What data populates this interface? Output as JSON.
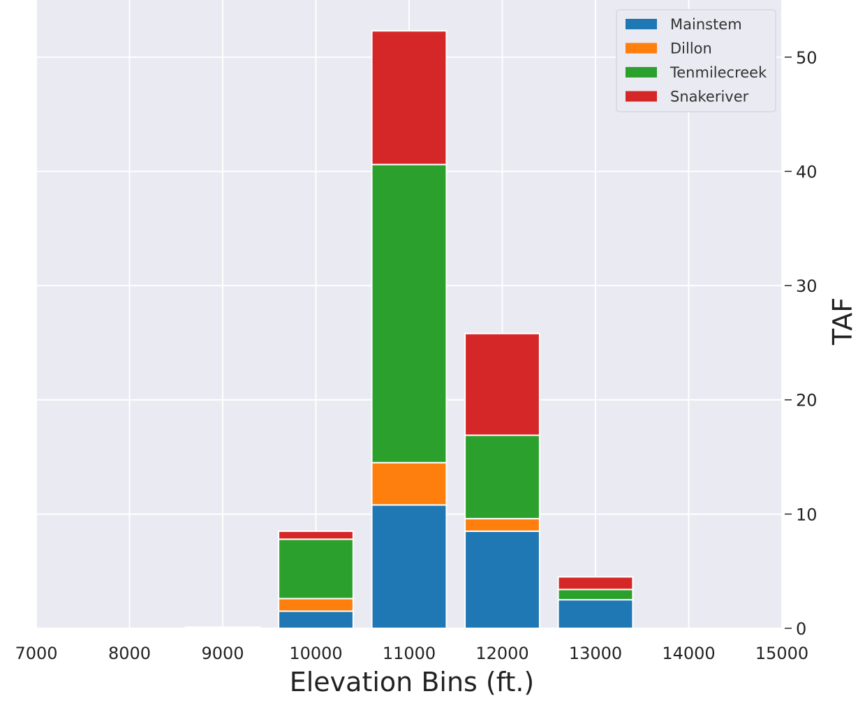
{
  "chart_data": {
    "type": "bar",
    "stacked": true,
    "title": "",
    "xlabel": "Elevation Bins (ft.)",
    "ylabel": "TAF",
    "y_axis_position": "right",
    "categories": [
      9000,
      10000,
      11000,
      12000,
      13000
    ],
    "series": [
      {
        "name": "Mainstem",
        "color": "#1f77b4",
        "values": [
          0.1,
          1.5,
          10.8,
          8.5,
          2.5
        ]
      },
      {
        "name": "Dillon",
        "color": "#ff7f0e",
        "values": [
          0.0,
          1.1,
          3.7,
          1.1,
          0.0
        ]
      },
      {
        "name": "Tenmilecreek",
        "color": "#2ca02c",
        "values": [
          0.0,
          5.2,
          26.1,
          7.3,
          0.9
        ]
      },
      {
        "name": "Snakeriver",
        "color": "#d62728",
        "values": [
          0.0,
          0.7,
          11.7,
          8.9,
          1.1
        ]
      }
    ],
    "xlim": [
      7000,
      15000
    ],
    "ylim": [
      0,
      55
    ],
    "xticks": [
      "7000",
      "8000",
      "9000",
      "10000",
      "11000",
      "12000",
      "13000",
      "14000",
      "15000"
    ],
    "yticks": [
      "0",
      "10",
      "20",
      "30",
      "40",
      "50"
    ],
    "grid": true,
    "legend_position": "top-right",
    "style": {
      "plot_background": "#eaeaf2",
      "grid_color": "#ffffff",
      "bar_edge_color": "#ffffff"
    }
  }
}
